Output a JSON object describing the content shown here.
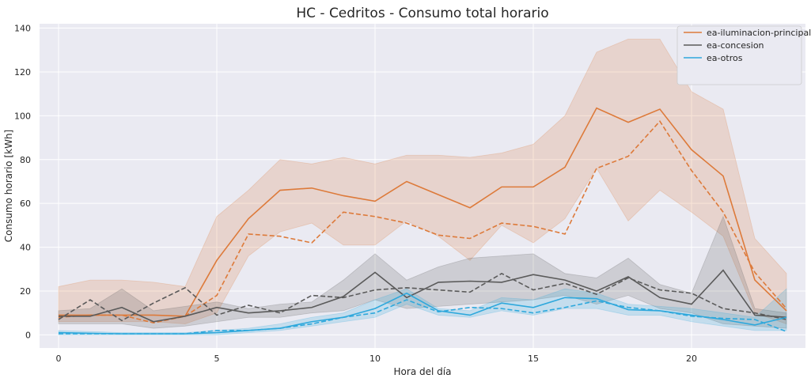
{
  "chart_data": {
    "type": "line",
    "title": "HC - Cedritos - Consumo total horario",
    "xlabel": "Hora del día",
    "ylabel": "Consumo horario [kWh]",
    "xlim": [
      -0.6,
      23.6
    ],
    "ylim": [
      -6,
      142
    ],
    "xticks": [
      0,
      5,
      10,
      15,
      20
    ],
    "yticks": [
      0,
      20,
      40,
      60,
      80,
      100,
      120,
      140
    ],
    "grid": true,
    "legend_position": "top-right",
    "x": [
      0,
      1,
      2,
      3,
      4,
      5,
      6,
      7,
      8,
      9,
      10,
      11,
      12,
      13,
      14,
      15,
      16,
      17,
      18,
      19,
      20,
      21,
      22,
      23
    ],
    "series": [
      {
        "name": "ea-iluminacion-principal",
        "color": "#dd7a3a",
        "values": [
          9,
          9,
          9,
          9,
          8.5,
          34,
          53,
          66,
          67,
          63.5,
          61,
          70,
          64,
          58,
          67.5,
          67.5,
          76.5,
          103.5,
          97,
          103,
          84.5,
          72.5,
          25,
          11
        ],
        "dashed_values": [
          8,
          9,
          9,
          5.5,
          8.5,
          18,
          46,
          45,
          42,
          56,
          54,
          51,
          45.5,
          44,
          51,
          49.5,
          46,
          76,
          81.5,
          97.5,
          75,
          56,
          28.5,
          12
        ],
        "band_lower": [
          6,
          6,
          6,
          6,
          5,
          10,
          36,
          47,
          51,
          41,
          41,
          52,
          45,
          34,
          50,
          42,
          53,
          76,
          52,
          66,
          56,
          45,
          10,
          5
        ],
        "band_upper": [
          22,
          25,
          25,
          24,
          22,
          54,
          66,
          80,
          78,
          81,
          78,
          82,
          82,
          81,
          83,
          87,
          100,
          129,
          135,
          135,
          111,
          103,
          44,
          28
        ]
      },
      {
        "name": "ea-concesion",
        "color": "#5a5a5a",
        "values": [
          8.5,
          8.5,
          12.5,
          6,
          8.5,
          12.5,
          10,
          11,
          12.5,
          17.5,
          28.5,
          17,
          24,
          24.5,
          24,
          27.5,
          25,
          20,
          26.5,
          17,
          14,
          29.5,
          9,
          8
        ],
        "dashed_values": [
          7,
          16,
          6.5,
          14.5,
          21.5,
          9,
          13.5,
          10,
          18,
          17,
          20.5,
          21.5,
          20.5,
          19.5,
          28,
          20.5,
          23.5,
          18.5,
          26,
          20.5,
          19,
          12,
          10,
          7
        ],
        "band_lower": [
          5,
          5,
          5,
          3,
          4,
          6,
          8,
          8,
          10,
          11,
          16,
          12,
          13,
          14,
          15,
          16,
          18,
          14,
          18,
          12,
          10,
          5,
          4,
          3
        ],
        "band_upper": [
          11,
          12,
          21,
          11,
          13,
          15,
          12,
          14,
          15,
          25,
          37,
          25,
          31,
          35,
          36,
          37,
          28,
          26,
          35,
          23,
          19,
          54,
          12,
          10
        ]
      },
      {
        "name": "ea-otros",
        "color": "#2ea8dc",
        "values": [
          1,
          0.7,
          0.5,
          0.5,
          0.5,
          1,
          2,
          3,
          6,
          8,
          12,
          19,
          11,
          9,
          14.5,
          12.5,
          17,
          16.5,
          11.5,
          11,
          9,
          7,
          4.5,
          8
        ],
        "dashed_values": [
          0.5,
          0.5,
          0.5,
          0.5,
          0.5,
          2,
          2,
          3,
          5,
          8,
          10,
          16,
          10.5,
          12.5,
          12,
          10,
          12.5,
          15.5,
          12.5,
          11,
          8.5,
          7.5,
          7,
          1.5
        ],
        "band_lower": [
          0,
          0,
          0,
          0,
          0,
          0,
          1,
          2,
          4,
          6,
          8,
          14,
          9,
          8,
          11,
          9,
          12,
          12,
          9,
          9,
          6,
          4,
          2,
          2
        ],
        "band_upper": [
          2,
          1.5,
          1,
          1,
          1,
          2,
          3,
          5,
          8,
          10,
          16,
          21,
          12,
          11,
          17,
          16,
          21,
          19,
          14,
          13,
          12,
          10,
          8,
          21
        ]
      }
    ]
  }
}
